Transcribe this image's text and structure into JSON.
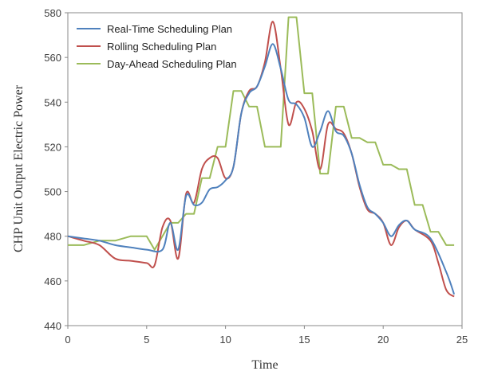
{
  "chart_data": {
    "type": "line",
    "title": "",
    "xlabel": "Time",
    "ylabel": "CHP Unit Output Electric Power",
    "xlim": [
      0,
      25
    ],
    "ylim": [
      440,
      580
    ],
    "xticks": [
      0,
      5,
      10,
      15,
      20,
      25
    ],
    "yticks": [
      440,
      460,
      480,
      500,
      520,
      540,
      560,
      580
    ],
    "grid": false,
    "legend_position": "top-left",
    "series": [
      {
        "name": "Real-Time Scheduling Plan",
        "color": "#4f81bd",
        "smooth": true,
        "points": [
          [
            0,
            480
          ],
          [
            1,
            479
          ],
          [
            2,
            478
          ],
          [
            3,
            476
          ],
          [
            4,
            475
          ],
          [
            5,
            474
          ],
          [
            6,
            474
          ],
          [
            6.5,
            486
          ],
          [
            7,
            474
          ],
          [
            7.5,
            498
          ],
          [
            8,
            494
          ],
          [
            8.5,
            495
          ],
          [
            9,
            501
          ],
          [
            9.5,
            502
          ],
          [
            10,
            505
          ],
          [
            10.5,
            511
          ],
          [
            11,
            535
          ],
          [
            11.5,
            544
          ],
          [
            12,
            547
          ],
          [
            12.5,
            556
          ],
          [
            13,
            566
          ],
          [
            13.5,
            555
          ],
          [
            14,
            541
          ],
          [
            14.5,
            539
          ],
          [
            15,
            533
          ],
          [
            15.5,
            520
          ],
          [
            16,
            527
          ],
          [
            16.5,
            536
          ],
          [
            17,
            527
          ],
          [
            17.5,
            525
          ],
          [
            18,
            517
          ],
          [
            18.5,
            503
          ],
          [
            19,
            493
          ],
          [
            19.5,
            490
          ],
          [
            20,
            486
          ],
          [
            20.5,
            480
          ],
          [
            21,
            485
          ],
          [
            21.5,
            487
          ],
          [
            22,
            483
          ],
          [
            23,
            479
          ],
          [
            24,
            464
          ],
          [
            24.5,
            454
          ]
        ]
      },
      {
        "name": "Rolling Scheduling Plan",
        "color": "#c0504d",
        "smooth": true,
        "points": [
          [
            0,
            480
          ],
          [
            1,
            478
          ],
          [
            2,
            476
          ],
          [
            3,
            470
          ],
          [
            4,
            469
          ],
          [
            5,
            468
          ],
          [
            5.5,
            467
          ],
          [
            6,
            484
          ],
          [
            6.5,
            487
          ],
          [
            7,
            470
          ],
          [
            7.5,
            499
          ],
          [
            8,
            495
          ],
          [
            8.5,
            510
          ],
          [
            9,
            515
          ],
          [
            9.5,
            515
          ],
          [
            10,
            506
          ],
          [
            10.5,
            511
          ],
          [
            11,
            535
          ],
          [
            11.5,
            545
          ],
          [
            12,
            547
          ],
          [
            12.5,
            558
          ],
          [
            13,
            576
          ],
          [
            13.5,
            555
          ],
          [
            14,
            530
          ],
          [
            14.5,
            540
          ],
          [
            15,
            537
          ],
          [
            15.5,
            527
          ],
          [
            16,
            510
          ],
          [
            16.5,
            530
          ],
          [
            17,
            528
          ],
          [
            17.5,
            526
          ],
          [
            18,
            517
          ],
          [
            18.5,
            502
          ],
          [
            19,
            492
          ],
          [
            19.5,
            490
          ],
          [
            20,
            486
          ],
          [
            20.5,
            476
          ],
          [
            21,
            484
          ],
          [
            21.5,
            487
          ],
          [
            22,
            483
          ],
          [
            23,
            478
          ],
          [
            23.5,
            468
          ],
          [
            24,
            456
          ],
          [
            24.5,
            453
          ]
        ]
      },
      {
        "name": "Day-Ahead Scheduling Plan",
        "color": "#9bbb59",
        "smooth": false,
        "points": [
          [
            0,
            476
          ],
          [
            1,
            476
          ],
          [
            2,
            478
          ],
          [
            3,
            478
          ],
          [
            4,
            480
          ],
          [
            5,
            480
          ],
          [
            5.5,
            474
          ],
          [
            6.5,
            486
          ],
          [
            7,
            486
          ],
          [
            7.5,
            490
          ],
          [
            8,
            490
          ],
          [
            8.5,
            506
          ],
          [
            9,
            506
          ],
          [
            9.5,
            520
          ],
          [
            10,
            520
          ],
          [
            10.5,
            545
          ],
          [
            11,
            545
          ],
          [
            11.5,
            538
          ],
          [
            12,
            538
          ],
          [
            12.5,
            520
          ],
          [
            13,
            520
          ],
          [
            13.5,
            520
          ],
          [
            14,
            578
          ],
          [
            14.5,
            578
          ],
          [
            15,
            544
          ],
          [
            15.5,
            544
          ],
          [
            16,
            508
          ],
          [
            16.5,
            508
          ],
          [
            17,
            538
          ],
          [
            17.5,
            538
          ],
          [
            18,
            524
          ],
          [
            18.5,
            524
          ],
          [
            19,
            522
          ],
          [
            19.5,
            522
          ],
          [
            20,
            512
          ],
          [
            20.5,
            512
          ],
          [
            21,
            510
          ],
          [
            21.5,
            510
          ],
          [
            22,
            494
          ],
          [
            22.5,
            494
          ],
          [
            23,
            482
          ],
          [
            23.5,
            482
          ],
          [
            24,
            476
          ],
          [
            24.5,
            476
          ]
        ]
      }
    ]
  }
}
